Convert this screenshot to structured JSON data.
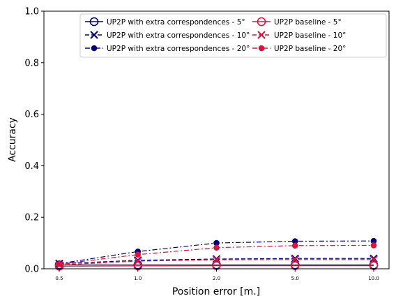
{
  "chart_data": {
    "type": "line",
    "title": "",
    "xlabel": "Position error [m.]",
    "ylabel": "Accuracy",
    "categories": [
      "0.5",
      "1.0",
      "2.0",
      "5.0",
      "10.0"
    ],
    "ylim": [
      0,
      1.0
    ],
    "yticks": [
      "0.0",
      "0.2",
      "0.4",
      "0.6",
      "0.8",
      "1.0"
    ],
    "grid": false,
    "legend_position": "top-right",
    "legend_columns": 2,
    "series": [
      {
        "name": "UP2P with extra correspondences - 5°",
        "color": "#00007f",
        "marker": "open-circle",
        "dash": "solid",
        "values": [
          0.015,
          0.015,
          0.015,
          0.015,
          0.015
        ]
      },
      {
        "name": "UP2P with extra correspondences - 10°",
        "color": "#00007f",
        "marker": "x",
        "dash": "dashed",
        "values": [
          0.02,
          0.033,
          0.038,
          0.04,
          0.04
        ]
      },
      {
        "name": "UP2P with extra correspondences - 20°",
        "color": "#00007f",
        "marker": "filled-circle",
        "dash": "dashdot",
        "values": [
          0.02,
          0.067,
          0.1,
          0.107,
          0.108
        ]
      },
      {
        "name": "UP2P baseline - 5°",
        "color": "#dc143c",
        "marker": "open-circle",
        "dash": "solid",
        "values": [
          0.01,
          0.011,
          0.012,
          0.012,
          0.012
        ]
      },
      {
        "name": "UP2P baseline - 10°",
        "color": "#dc143c",
        "marker": "x",
        "dash": "dashed",
        "values": [
          0.015,
          0.03,
          0.035,
          0.036,
          0.036
        ]
      },
      {
        "name": "UP2P baseline - 20°",
        "color": "#dc143c",
        "marker": "filled-circle",
        "dash": "dashdot",
        "values": [
          0.018,
          0.055,
          0.082,
          0.09,
          0.091
        ]
      }
    ]
  }
}
